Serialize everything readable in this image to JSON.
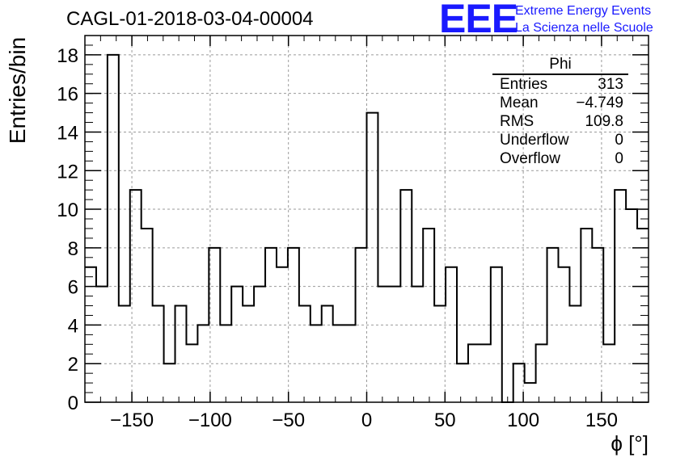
{
  "chart_data": {
    "type": "histogram",
    "title": "CAGL-01-2018-03-04-00004",
    "xlabel": "ϕ [°]",
    "ylabel": "Entries/bin",
    "xlim": [
      -180,
      180
    ],
    "ylim": [
      0,
      19
    ],
    "bin_width": 7.2,
    "grid": true,
    "x_ticks": [
      -150,
      -100,
      -50,
      0,
      50,
      100,
      150
    ],
    "x_tick_labels": [
      "−150",
      "−100",
      "−50",
      "0",
      "50",
      "100",
      "150"
    ],
    "y_ticks": [
      0,
      2,
      4,
      6,
      8,
      10,
      12,
      14,
      16,
      18
    ],
    "y_tick_labels": [
      "0",
      "2",
      "4",
      "6",
      "8",
      "10",
      "12",
      "14",
      "16",
      "18"
    ],
    "bin_low_edges": [
      -180,
      -172.8,
      -165.6,
      -158.4,
      -151.2,
      -144,
      -136.8,
      -129.6,
      -122.4,
      -115.2,
      -108,
      -100.8,
      -93.6,
      -86.4,
      -79.2,
      -72,
      -64.8,
      -57.6,
      -50.4,
      -43.2,
      -36,
      -28.8,
      -21.6,
      -14.4,
      -7.2,
      0,
      7.2,
      14.4,
      21.6,
      28.8,
      36,
      43.2,
      50.4,
      57.6,
      64.8,
      72,
      79.2,
      86.4,
      93.6,
      100.8,
      108,
      115.2,
      122.4,
      129.6,
      136.8,
      144,
      151.2,
      158.4,
      165.6,
      172.8
    ],
    "values": [
      7,
      6,
      18,
      5,
      11,
      9,
      5,
      2,
      5,
      3,
      4,
      8,
      4,
      6,
      5,
      6,
      8,
      7,
      8,
      5,
      4,
      5,
      4,
      4,
      8,
      15,
      6,
      6,
      11,
      6,
      9,
      5,
      7,
      2,
      3,
      3,
      7,
      0,
      2,
      1,
      3,
      8,
      7,
      5,
      9,
      8,
      3,
      11,
      10,
      9
    ]
  },
  "stats_box": {
    "name": "Phi",
    "rows": [
      {
        "label": "Entries",
        "value": "313"
      },
      {
        "label": "Mean",
        "value": "−4.749"
      },
      {
        "label": "RMS",
        "value": "109.8"
      },
      {
        "label": "Underflow",
        "value": "0"
      },
      {
        "label": "Overflow",
        "value": "0"
      }
    ]
  },
  "logo": {
    "mark": "EEE",
    "line1": "Extreme Energy Events",
    "line2": "La Scienza nelle Scuole",
    "color": "#1a1aff"
  }
}
